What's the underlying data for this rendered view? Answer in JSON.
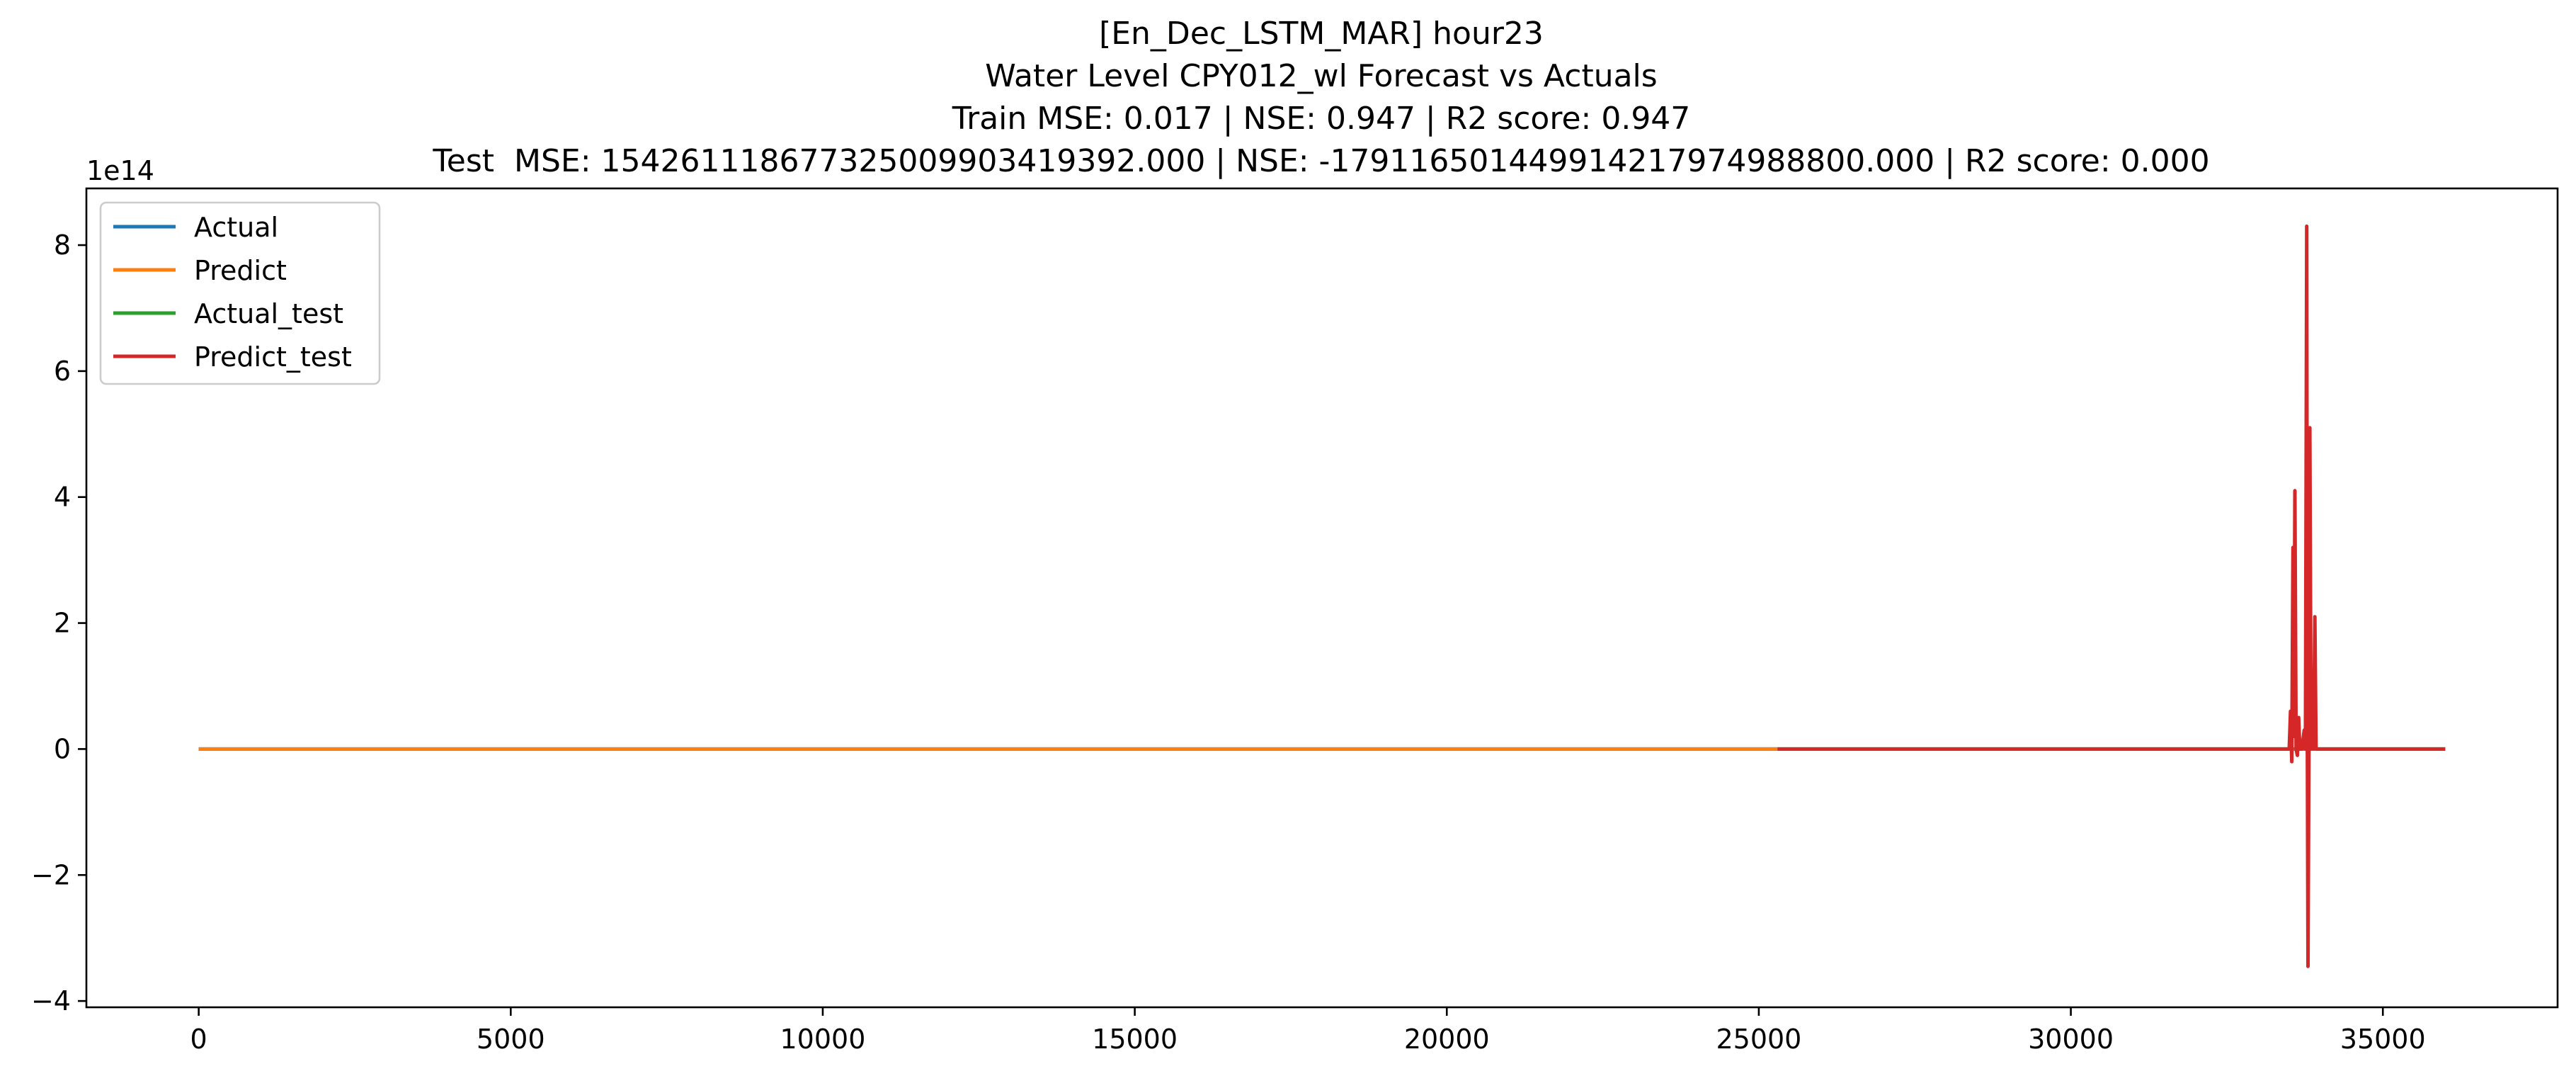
{
  "chart_data": {
    "type": "line",
    "title_lines": [
      "[En_Dec_LSTM_MAR] hour23",
      "Water Level CPY012_wl Forecast vs Actuals",
      "Train MSE: 0.017 | NSE: 0.947 | R2 score: 0.947",
      "Test  MSE: 154261118677325009903419392.000 | NSE: -179116501449914217974988800.000 | R2 score: 0.000"
    ],
    "xlabel": "",
    "ylabel": "",
    "y_offset_label": "1e14",
    "xlim": [
      -1800,
      37800
    ],
    "ylim": [
      -4.1,
      8.9
    ],
    "x_ticks": [
      0,
      5000,
      10000,
      15000,
      20000,
      25000,
      30000,
      35000
    ],
    "x_tick_labels": [
      "0",
      "5000",
      "10000",
      "15000",
      "20000",
      "25000",
      "30000",
      "35000"
    ],
    "y_ticks": [
      -4,
      -2,
      0,
      2,
      4,
      6,
      8
    ],
    "y_tick_labels": [
      "−4",
      "−2",
      "0",
      "2",
      "4",
      "6",
      "8"
    ],
    "grid": false,
    "legend_position": "top-left",
    "series": [
      {
        "name": "Actual",
        "color": "#1f77b4",
        "points": [
          [
            0,
            0
          ],
          [
            25300,
            0
          ]
        ]
      },
      {
        "name": "Predict",
        "color": "#ff7f0e",
        "points": [
          [
            0,
            0
          ],
          [
            25300,
            0
          ]
        ]
      },
      {
        "name": "Actual_test",
        "color": "#2ca02c",
        "points": [
          [
            25300,
            0
          ],
          [
            36000,
            0
          ]
        ]
      },
      {
        "name": "Predict_test",
        "color": "#d62728",
        "points": [
          [
            25300,
            0
          ],
          [
            33500,
            0
          ],
          [
            33520,
            0.6
          ],
          [
            33540,
            -0.2
          ],
          [
            33560,
            3.2
          ],
          [
            33575,
            0.2
          ],
          [
            33590,
            4.1
          ],
          [
            33610,
            0.0
          ],
          [
            33630,
            -0.1
          ],
          [
            33650,
            0.5
          ],
          [
            33670,
            0.0
          ],
          [
            33700,
            0.0
          ],
          [
            33740,
            0.3
          ],
          [
            33760,
            0.0
          ],
          [
            33780,
            8.3
          ],
          [
            33790,
            0.0
          ],
          [
            33800,
            -3.45
          ],
          [
            33815,
            0.0
          ],
          [
            33830,
            5.1
          ],
          [
            33850,
            0.0
          ],
          [
            33870,
            1.1
          ],
          [
            33890,
            0.0
          ],
          [
            33910,
            2.1
          ],
          [
            33930,
            0.0
          ],
          [
            34000,
            0.0
          ],
          [
            36000,
            0.0
          ]
        ]
      }
    ]
  }
}
